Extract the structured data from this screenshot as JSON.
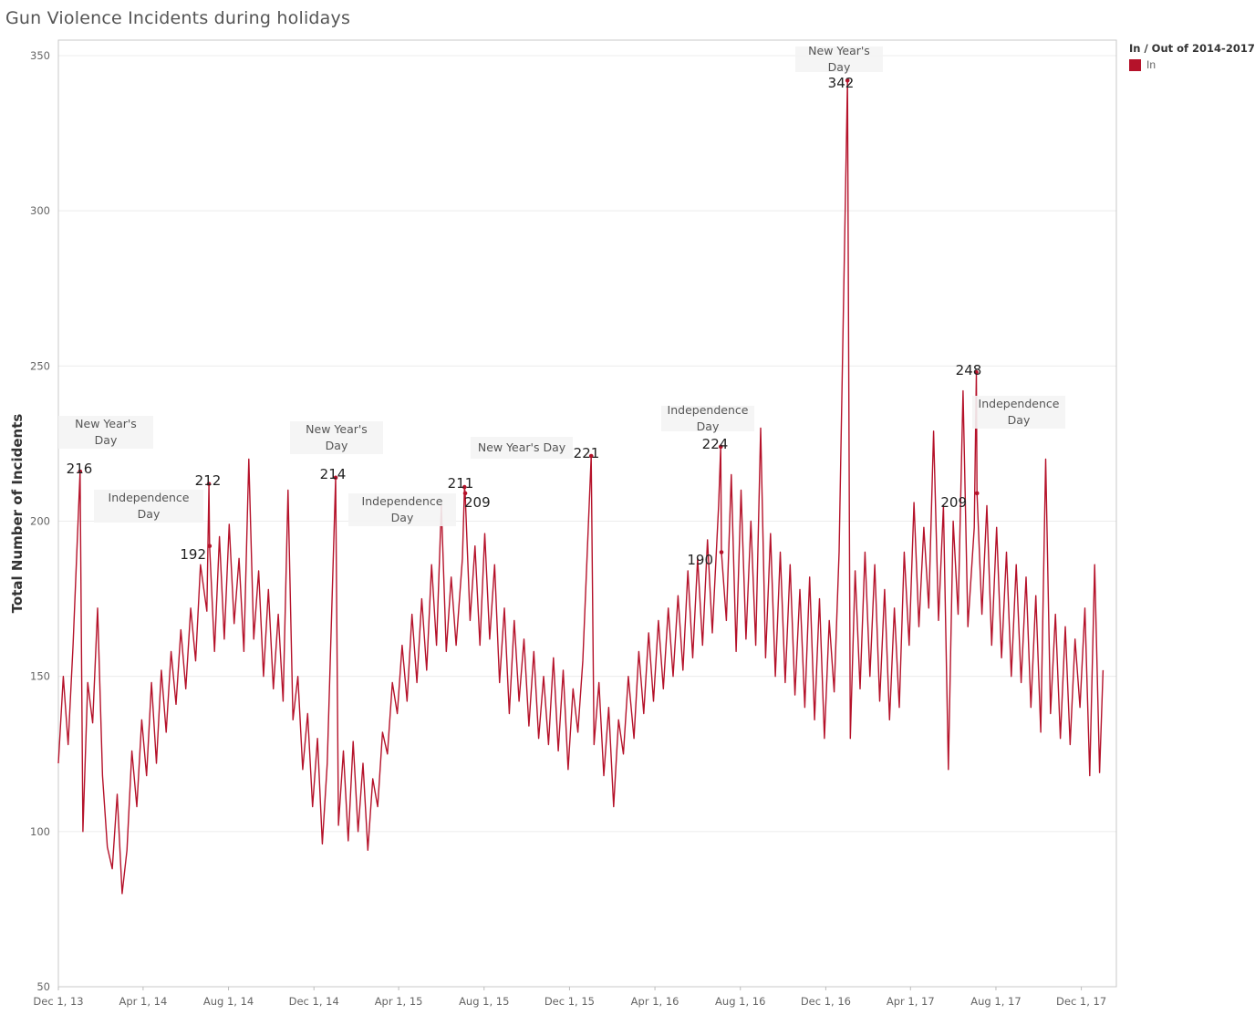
{
  "title": "Gun Violence Incidents during holidays",
  "legend": {
    "title": "In / Out of 2014-2017",
    "items": [
      {
        "label": "In",
        "color": "#b5122a"
      }
    ]
  },
  "chart_data": {
    "type": "line",
    "title": "Gun Violence Incidents during holidays",
    "xlabel": "",
    "ylabel": "Total Number of Incidents",
    "ylim": [
      50,
      355
    ],
    "xlim": [
      "2013-12-01",
      "2018-01-20"
    ],
    "y_ticks": [
      50,
      100,
      150,
      200,
      250,
      300,
      350
    ],
    "x_ticks": [
      {
        "date": "2013-12-01",
        "label": "Dec 1, 13"
      },
      {
        "date": "2014-04-01",
        "label": "Apr 1, 14"
      },
      {
        "date": "2014-08-01",
        "label": "Aug 1, 14"
      },
      {
        "date": "2014-12-01",
        "label": "Dec 1, 14"
      },
      {
        "date": "2015-04-01",
        "label": "Apr 1, 15"
      },
      {
        "date": "2015-08-01",
        "label": "Aug 1, 15"
      },
      {
        "date": "2015-12-01",
        "label": "Dec 1, 15"
      },
      {
        "date": "2016-04-01",
        "label": "Apr 1, 16"
      },
      {
        "date": "2016-08-01",
        "label": "Aug 1, 16"
      },
      {
        "date": "2016-12-01",
        "label": "Dec 1, 16"
      },
      {
        "date": "2017-04-01",
        "label": "Apr 1, 17"
      },
      {
        "date": "2017-08-01",
        "label": "Aug 1, 17"
      },
      {
        "date": "2017-12-01",
        "label": "Dec 1, 17"
      }
    ],
    "grid": true,
    "legend_position": "top-right",
    "series": [
      {
        "color": "#b5122a",
        "points": [
          [
            "2013-12-01",
            122
          ],
          [
            "2013-12-08",
            150
          ],
          [
            "2013-12-15",
            128
          ],
          [
            "2013-12-22",
            160
          ],
          [
            "2014-01-01",
            216
          ],
          [
            "2014-01-05",
            100
          ],
          [
            "2014-01-12",
            148
          ],
          [
            "2014-01-19",
            135
          ],
          [
            "2014-01-26",
            172
          ],
          [
            "2014-02-02",
            118
          ],
          [
            "2014-02-09",
            95
          ],
          [
            "2014-02-16",
            88
          ],
          [
            "2014-02-23",
            112
          ],
          [
            "2014-03-02",
            80
          ],
          [
            "2014-03-09",
            94
          ],
          [
            "2014-03-16",
            126
          ],
          [
            "2014-03-23",
            108
          ],
          [
            "2014-03-30",
            136
          ],
          [
            "2014-04-06",
            118
          ],
          [
            "2014-04-13",
            148
          ],
          [
            "2014-04-20",
            122
          ],
          [
            "2014-04-27",
            152
          ],
          [
            "2014-05-04",
            132
          ],
          [
            "2014-05-11",
            158
          ],
          [
            "2014-05-18",
            141
          ],
          [
            "2014-05-25",
            165
          ],
          [
            "2014-06-01",
            146
          ],
          [
            "2014-06-08",
            172
          ],
          [
            "2014-06-15",
            155
          ],
          [
            "2014-06-22",
            186
          ],
          [
            "2014-07-01",
            171
          ],
          [
            "2014-07-04",
            212
          ],
          [
            "2014-07-05",
            192
          ],
          [
            "2014-07-12",
            158
          ],
          [
            "2014-07-19",
            195
          ],
          [
            "2014-07-26",
            162
          ],
          [
            "2014-08-02",
            199
          ],
          [
            "2014-08-09",
            167
          ],
          [
            "2014-08-16",
            188
          ],
          [
            "2014-08-23",
            158
          ],
          [
            "2014-08-30",
            220
          ],
          [
            "2014-09-06",
            162
          ],
          [
            "2014-09-13",
            184
          ],
          [
            "2014-09-20",
            150
          ],
          [
            "2014-09-27",
            178
          ],
          [
            "2014-10-04",
            146
          ],
          [
            "2014-10-11",
            170
          ],
          [
            "2014-10-18",
            142
          ],
          [
            "2014-10-25",
            210
          ],
          [
            "2014-11-01",
            136
          ],
          [
            "2014-11-08",
            150
          ],
          [
            "2014-11-15",
            120
          ],
          [
            "2014-11-22",
            138
          ],
          [
            "2014-11-29",
            108
          ],
          [
            "2014-12-06",
            130
          ],
          [
            "2014-12-13",
            96
          ],
          [
            "2014-12-20",
            122
          ],
          [
            "2015-01-01",
            214
          ],
          [
            "2015-01-05",
            102
          ],
          [
            "2015-01-12",
            126
          ],
          [
            "2015-01-19",
            97
          ],
          [
            "2015-01-26",
            129
          ],
          [
            "2015-02-02",
            100
          ],
          [
            "2015-02-09",
            122
          ],
          [
            "2015-02-16",
            94
          ],
          [
            "2015-02-23",
            117
          ],
          [
            "2015-03-02",
            108
          ],
          [
            "2015-03-09",
            132
          ],
          [
            "2015-03-16",
            125
          ],
          [
            "2015-03-23",
            148
          ],
          [
            "2015-03-30",
            138
          ],
          [
            "2015-04-06",
            160
          ],
          [
            "2015-04-13",
            142
          ],
          [
            "2015-04-20",
            170
          ],
          [
            "2015-04-27",
            148
          ],
          [
            "2015-05-04",
            175
          ],
          [
            "2015-05-11",
            152
          ],
          [
            "2015-05-18",
            186
          ],
          [
            "2015-05-25",
            160
          ],
          [
            "2015-06-01",
            205
          ],
          [
            "2015-06-08",
            158
          ],
          [
            "2015-06-15",
            182
          ],
          [
            "2015-06-22",
            160
          ],
          [
            "2015-07-01",
            188
          ],
          [
            "2015-07-04",
            211
          ],
          [
            "2015-07-05",
            209
          ],
          [
            "2015-07-12",
            168
          ],
          [
            "2015-07-19",
            192
          ],
          [
            "2015-07-26",
            160
          ],
          [
            "2015-08-02",
            196
          ],
          [
            "2015-08-09",
            162
          ],
          [
            "2015-08-16",
            186
          ],
          [
            "2015-08-23",
            148
          ],
          [
            "2015-08-30",
            172
          ],
          [
            "2015-09-06",
            138
          ],
          [
            "2015-09-13",
            168
          ],
          [
            "2015-09-20",
            142
          ],
          [
            "2015-09-27",
            162
          ],
          [
            "2015-10-04",
            134
          ],
          [
            "2015-10-11",
            158
          ],
          [
            "2015-10-18",
            130
          ],
          [
            "2015-10-25",
            150
          ],
          [
            "2015-11-01",
            128
          ],
          [
            "2015-11-08",
            156
          ],
          [
            "2015-11-15",
            126
          ],
          [
            "2015-11-22",
            152
          ],
          [
            "2015-11-29",
            120
          ],
          [
            "2015-12-06",
            146
          ],
          [
            "2015-12-13",
            132
          ],
          [
            "2015-12-20",
            155
          ],
          [
            "2016-01-01",
            221
          ],
          [
            "2016-01-05",
            128
          ],
          [
            "2016-01-12",
            148
          ],
          [
            "2016-01-19",
            118
          ],
          [
            "2016-01-26",
            140
          ],
          [
            "2016-02-02",
            108
          ],
          [
            "2016-02-09",
            136
          ],
          [
            "2016-02-16",
            125
          ],
          [
            "2016-02-23",
            150
          ],
          [
            "2016-03-02",
            130
          ],
          [
            "2016-03-09",
            158
          ],
          [
            "2016-03-16",
            138
          ],
          [
            "2016-03-23",
            164
          ],
          [
            "2016-03-30",
            142
          ],
          [
            "2016-04-06",
            168
          ],
          [
            "2016-04-13",
            146
          ],
          [
            "2016-04-20",
            172
          ],
          [
            "2016-04-27",
            150
          ],
          [
            "2016-05-04",
            176
          ],
          [
            "2016-05-11",
            152
          ],
          [
            "2016-05-18",
            184
          ],
          [
            "2016-05-25",
            156
          ],
          [
            "2016-06-01",
            188
          ],
          [
            "2016-06-08",
            160
          ],
          [
            "2016-06-15",
            194
          ],
          [
            "2016-06-22",
            164
          ],
          [
            "2016-07-01",
            205
          ],
          [
            "2016-07-04",
            224
          ],
          [
            "2016-07-05",
            190
          ],
          [
            "2016-07-12",
            168
          ],
          [
            "2016-07-19",
            215
          ],
          [
            "2016-07-26",
            158
          ],
          [
            "2016-08-02",
            210
          ],
          [
            "2016-08-09",
            162
          ],
          [
            "2016-08-16",
            200
          ],
          [
            "2016-08-23",
            160
          ],
          [
            "2016-08-30",
            230
          ],
          [
            "2016-09-06",
            156
          ],
          [
            "2016-09-13",
            196
          ],
          [
            "2016-09-20",
            150
          ],
          [
            "2016-09-27",
            190
          ],
          [
            "2016-10-04",
            148
          ],
          [
            "2016-10-11",
            186
          ],
          [
            "2016-10-18",
            144
          ],
          [
            "2016-10-25",
            178
          ],
          [
            "2016-11-01",
            140
          ],
          [
            "2016-11-08",
            182
          ],
          [
            "2016-11-15",
            136
          ],
          [
            "2016-11-22",
            175
          ],
          [
            "2016-11-29",
            130
          ],
          [
            "2016-12-06",
            168
          ],
          [
            "2016-12-13",
            145
          ],
          [
            "2016-12-20",
            190
          ],
          [
            "2017-01-01",
            342
          ],
          [
            "2017-01-05",
            130
          ],
          [
            "2017-01-12",
            184
          ],
          [
            "2017-01-19",
            146
          ],
          [
            "2017-01-26",
            190
          ],
          [
            "2017-02-02",
            150
          ],
          [
            "2017-02-09",
            186
          ],
          [
            "2017-02-16",
            142
          ],
          [
            "2017-02-23",
            178
          ],
          [
            "2017-03-02",
            136
          ],
          [
            "2017-03-09",
            172
          ],
          [
            "2017-03-16",
            140
          ],
          [
            "2017-03-23",
            190
          ],
          [
            "2017-03-30",
            160
          ],
          [
            "2017-04-06",
            206
          ],
          [
            "2017-04-13",
            166
          ],
          [
            "2017-04-20",
            198
          ],
          [
            "2017-04-27",
            172
          ],
          [
            "2017-05-04",
            229
          ],
          [
            "2017-05-11",
            168
          ],
          [
            "2017-05-18",
            205
          ],
          [
            "2017-05-25",
            120
          ],
          [
            "2017-06-01",
            200
          ],
          [
            "2017-06-08",
            170
          ],
          [
            "2017-06-15",
            242
          ],
          [
            "2017-06-22",
            166
          ],
          [
            "2017-07-01",
            198
          ],
          [
            "2017-07-04",
            248
          ],
          [
            "2017-07-05",
            209
          ],
          [
            "2017-07-12",
            170
          ],
          [
            "2017-07-19",
            205
          ],
          [
            "2017-07-26",
            160
          ],
          [
            "2017-08-02",
            198
          ],
          [
            "2017-08-09",
            156
          ],
          [
            "2017-08-16",
            190
          ],
          [
            "2017-08-23",
            150
          ],
          [
            "2017-08-30",
            186
          ],
          [
            "2017-09-06",
            148
          ],
          [
            "2017-09-13",
            182
          ],
          [
            "2017-09-20",
            140
          ],
          [
            "2017-09-27",
            176
          ],
          [
            "2017-10-04",
            132
          ],
          [
            "2017-10-11",
            220
          ],
          [
            "2017-10-18",
            138
          ],
          [
            "2017-10-25",
            170
          ],
          [
            "2017-11-01",
            130
          ],
          [
            "2017-11-08",
            166
          ],
          [
            "2017-11-15",
            128
          ],
          [
            "2017-11-22",
            162
          ],
          [
            "2017-11-29",
            140
          ],
          [
            "2017-12-06",
            172
          ],
          [
            "2017-12-13",
            118
          ],
          [
            "2017-12-20",
            186
          ],
          [
            "2017-12-27",
            119
          ],
          [
            "2018-01-01",
            152
          ]
        ]
      }
    ],
    "highlighted_points": [
      {
        "date": "2014-01-01",
        "value": 216,
        "label": "216"
      },
      {
        "date": "2014-07-04",
        "value": 212,
        "label": "212"
      },
      {
        "date": "2014-07-05",
        "value": 192,
        "label": "192"
      },
      {
        "date": "2015-01-01",
        "value": 214,
        "label": "214"
      },
      {
        "date": "2015-07-04",
        "value": 211,
        "label": "211"
      },
      {
        "date": "2015-07-05",
        "value": 209,
        "label": "209"
      },
      {
        "date": "2016-01-01",
        "value": 221,
        "label": "221"
      },
      {
        "date": "2016-07-04",
        "value": 224,
        "label": "224"
      },
      {
        "date": "2016-07-05",
        "value": 190,
        "label": "190"
      },
      {
        "date": "2017-01-01",
        "value": 342,
        "label": "342"
      },
      {
        "date": "2017-07-04",
        "value": 248,
        "label": "248"
      },
      {
        "date": "2017-07-05",
        "value": 209,
        "label": "209"
      }
    ],
    "annotations": [
      {
        "lines": [
          "New Year's",
          "Day"
        ]
      },
      {
        "lines": [
          "Independence",
          "Day"
        ]
      },
      {
        "lines": [
          "New Year's",
          "Day"
        ]
      },
      {
        "lines": [
          "Independence",
          "Day"
        ]
      },
      {
        "lines": [
          "New Year's Day"
        ]
      },
      {
        "lines": [
          "Independence",
          "Day"
        ]
      },
      {
        "lines": [
          "New Year's",
          "Day"
        ]
      },
      {
        "lines": [
          "Independence",
          "Day"
        ]
      }
    ]
  }
}
